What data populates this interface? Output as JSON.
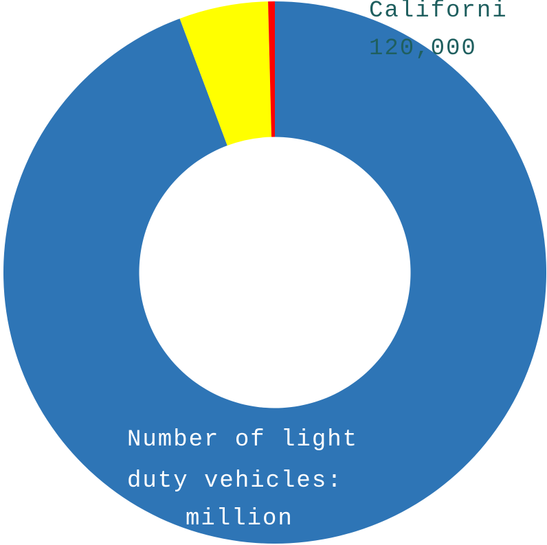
{
  "chart_data": {
    "type": "pie",
    "values": [
      94.3,
      5.3,
      0.4
    ],
    "colors": [
      "#2e75b6",
      "#ffff00",
      "#ff0000"
    ],
    "hole": 0.5,
    "annotations": [
      {
        "lines": [
          "Californi",
          "120,000"
        ],
        "color": "#1f5f5f"
      },
      {
        "lines": [
          "Number of light",
          "duty vehicles:",
          "million"
        ],
        "color": "#ffffff"
      }
    ]
  }
}
